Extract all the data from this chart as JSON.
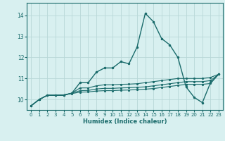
{
  "xlabel": "Humidex (Indice chaleur)",
  "background_color": "#d8f0f0",
  "grid_color": "#b8d8d8",
  "line_color": "#1a6b6b",
  "xlim": [
    -0.5,
    23.5
  ],
  "ylim": [
    9.5,
    14.6
  ],
  "yticks": [
    10,
    11,
    12,
    13,
    14
  ],
  "xticks": [
    0,
    1,
    2,
    3,
    4,
    5,
    6,
    7,
    8,
    9,
    10,
    11,
    12,
    13,
    14,
    15,
    16,
    17,
    18,
    19,
    20,
    21,
    22,
    23
  ],
  "series": [
    [
      9.7,
      10.0,
      10.2,
      10.2,
      10.2,
      10.3,
      10.8,
      10.8,
      11.3,
      11.5,
      11.5,
      11.8,
      11.7,
      12.5,
      14.1,
      13.7,
      12.9,
      12.6,
      12.0,
      10.6,
      10.1,
      9.85,
      10.8,
      11.2
    ],
    [
      9.7,
      10.0,
      10.2,
      10.2,
      10.2,
      10.3,
      10.55,
      10.55,
      10.65,
      10.7,
      10.7,
      10.72,
      10.73,
      10.75,
      10.8,
      10.85,
      10.9,
      10.95,
      11.0,
      11.0,
      11.0,
      11.0,
      11.05,
      11.2
    ],
    [
      9.7,
      10.0,
      10.2,
      10.2,
      10.22,
      10.3,
      10.42,
      10.43,
      10.5,
      10.53,
      10.53,
      10.55,
      10.56,
      10.58,
      10.6,
      10.65,
      10.7,
      10.75,
      10.8,
      10.85,
      10.85,
      10.85,
      10.9,
      11.2
    ],
    [
      9.7,
      10.0,
      10.2,
      10.2,
      10.22,
      10.28,
      10.35,
      10.36,
      10.4,
      10.42,
      10.42,
      10.44,
      10.45,
      10.47,
      10.49,
      10.52,
      10.57,
      10.62,
      10.67,
      10.72,
      10.72,
      10.72,
      10.76,
      11.2
    ]
  ]
}
